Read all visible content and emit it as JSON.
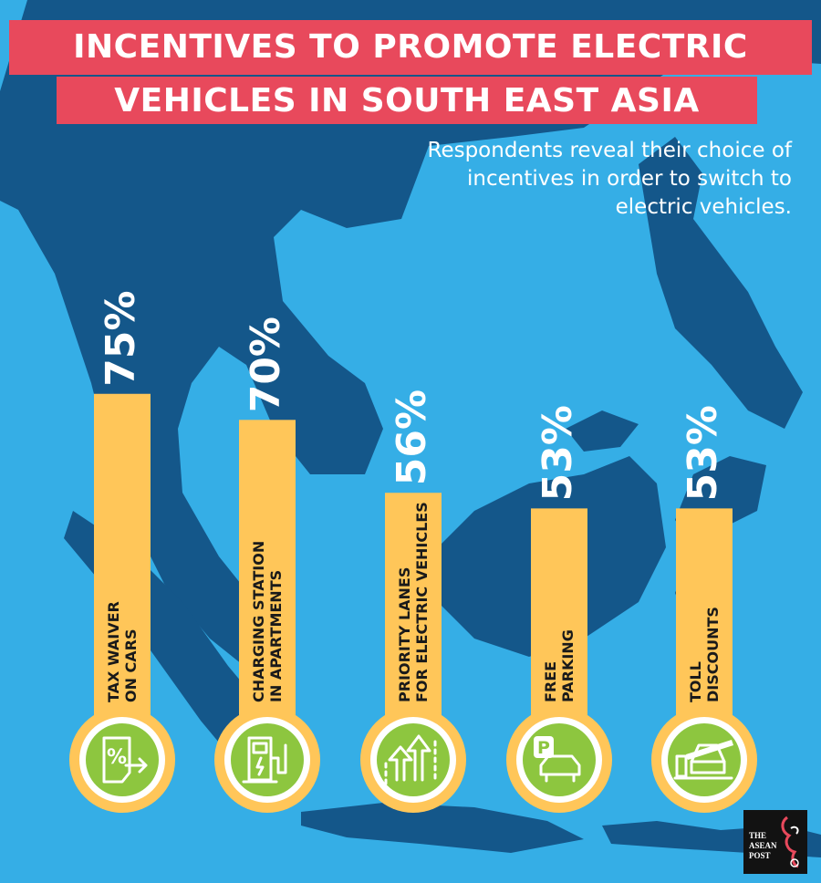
{
  "header": {
    "title_line1": "INCENTIVES TO PROMOTE ELECTRIC",
    "title_line2": "VEHICLES IN SOUTH EAST ASIA",
    "subtitle_line1": "Respondents reveal their choice of",
    "subtitle_line2": "incentives in order to switch to",
    "subtitle_line3": "electric vehicles."
  },
  "colors": {
    "background": "#35aee6",
    "land": "#14578a",
    "title_band": "#e8495c",
    "bar": "#ffc659",
    "icon": "#8dc63f"
  },
  "chart_data": {
    "type": "bar",
    "orientation": "vertical",
    "unit": "%",
    "categories": [
      [
        "TAX WAIVER",
        "ON CARS"
      ],
      [
        "CHARGING STATION",
        "IN APARTMENTS"
      ],
      [
        "PRIORITY LANES",
        "FOR ELECTRIC VEHICLES"
      ],
      [
        "FREE",
        "PARKING"
      ],
      [
        "TOLL",
        "DISCOUNTS"
      ]
    ],
    "values": [
      75,
      70,
      56,
      53,
      53
    ],
    "value_labels": [
      "75%",
      "70%",
      "56%",
      "53%",
      "53%"
    ],
    "icons": [
      "tax-document-icon",
      "charging-station-icon",
      "priority-lane-arrows-icon",
      "parking-car-icon",
      "toll-gate-car-icon"
    ]
  },
  "logo": {
    "text": "THE\nASEAN\nPOST"
  }
}
